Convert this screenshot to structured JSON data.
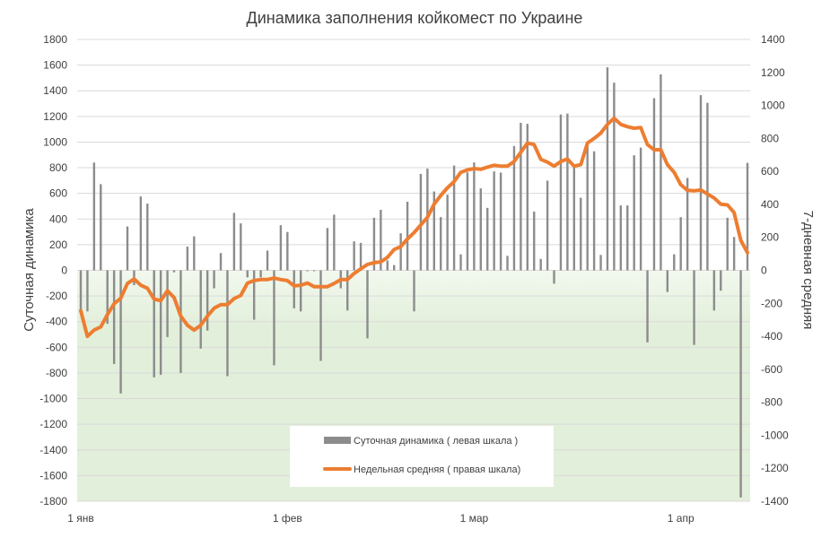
{
  "chart_data": {
    "type": "bar+line",
    "title": "Динамика заполнения койкомест по Украине",
    "ylabel_left": "Суточная динамика",
    "ylabel_right": "7-дневная средняя",
    "ylim_left": [
      -1800,
      1800
    ],
    "ylim_right": [
      -1400,
      1400
    ],
    "yticks_left": [
      "1800",
      "1600",
      "1400",
      "1200",
      "1000",
      "800",
      "600",
      "400",
      "200",
      "0",
      "-200",
      "-400",
      "-600",
      "-800",
      "-1000",
      "-1200",
      "-1400",
      "-1600",
      "-1800"
    ],
    "yticks_right": [
      "1400",
      "1200",
      "1000",
      "800",
      "600",
      "400",
      "200",
      "0",
      "-200",
      "-400",
      "-600",
      "-800",
      "-1000",
      "-1200",
      "-1400"
    ],
    "xticks": [
      {
        "date": "01-01",
        "label": "1 янв"
      },
      {
        "date": "02-01",
        "label": "1 фев"
      },
      {
        "date": "03-01",
        "label": "1 мар"
      },
      {
        "date": "04-01",
        "label": "1 апр"
      }
    ],
    "grid": true,
    "legend_position": "bottom-center",
    "colors": {
      "bars": "#8c8c8c",
      "line": "#ed7d31",
      "negative_area": "#e2efda",
      "grid": "#d9d9d9"
    },
    "x": [
      "01-01",
      "01-02",
      "01-03",
      "01-04",
      "01-05",
      "01-06",
      "01-07",
      "01-08",
      "01-09",
      "01-10",
      "01-11",
      "01-12",
      "01-13",
      "01-14",
      "01-15",
      "01-16",
      "01-17",
      "01-18",
      "01-19",
      "01-20",
      "01-21",
      "01-22",
      "01-23",
      "01-24",
      "01-25",
      "01-26",
      "01-27",
      "01-28",
      "01-29",
      "01-30",
      "01-31",
      "02-01",
      "02-02",
      "02-03",
      "02-04",
      "02-05",
      "02-06",
      "02-07",
      "02-08",
      "02-09",
      "02-10",
      "02-11",
      "02-12",
      "02-13",
      "02-14",
      "02-15",
      "02-16",
      "02-17",
      "02-18",
      "02-19",
      "02-20",
      "02-21",
      "02-22",
      "02-23",
      "02-24",
      "02-25",
      "02-26",
      "02-27",
      "02-28",
      "03-01",
      "03-02",
      "03-03",
      "03-04",
      "03-05",
      "03-06",
      "03-07",
      "03-08",
      "03-09",
      "03-10",
      "03-11",
      "03-12",
      "03-13",
      "03-14",
      "03-15",
      "03-16",
      "03-17",
      "03-18",
      "03-19",
      "03-20",
      "03-21",
      "03-22",
      "03-23",
      "03-24",
      "03-25",
      "03-26",
      "03-27",
      "03-28",
      "03-29",
      "03-30",
      "03-31",
      "04-01",
      "04-02",
      "04-03",
      "04-04",
      "04-05",
      "04-06",
      "04-07",
      "04-08",
      "04-09",
      "04-10",
      "04-11"
    ],
    "series": [
      {
        "name": "Суточная динамика ( левая шкала )",
        "type": "bar",
        "axis": "left",
        "values": [
          -320,
          -320,
          840,
          672,
          -417,
          -730,
          -960,
          342,
          -115,
          576,
          520,
          -834,
          -815,
          -520,
          -15,
          -800,
          185,
          265,
          -610,
          -470,
          -140,
          135,
          -825,
          448,
          366,
          -55,
          -385,
          -55,
          154,
          -740,
          352,
          299,
          -296,
          -320,
          -7,
          -7,
          -706,
          330,
          434,
          -140,
          -313,
          226,
          214,
          -530,
          410,
          472,
          77,
          41,
          289,
          535,
          -320,
          752,
          793,
          615,
          415,
          590,
          817,
          125,
          764,
          841,
          639,
          487,
          771,
          762,
          113,
          969,
          1150,
          1142,
          458,
          89,
          699,
          -104,
          1215,
          1222,
          800,
          566,
          969,
          928,
          120,
          1583,
          1463,
          506,
          506,
          897,
          957,
          -562,
          1342,
          1528,
          -169,
          125,
          415,
          720,
          -581,
          1366,
          1306,
          -313,
          -159,
          410,
          260,
          -1770,
          838
        ]
      },
      {
        "name": "Недельная средняя ( правая шкала)",
        "type": "line",
        "axis": "right",
        "values": [
          -245,
          -400,
          -362,
          -343,
          -268,
          -202,
          -169,
          -80,
          -52,
          -90,
          -109,
          -174,
          -184,
          -124,
          -165,
          -277,
          -333,
          -362,
          -333,
          -277,
          -230,
          -208,
          -208,
          -171,
          -152,
          -77,
          -62,
          -56,
          -56,
          -47,
          -56,
          -62,
          -94,
          -90,
          -77,
          -99,
          -99,
          -99,
          -80,
          -56,
          -56,
          -19,
          9,
          36,
          47,
          51,
          79,
          126,
          144,
          191,
          229,
          275,
          322,
          401,
          454,
          500,
          538,
          594,
          609,
          617,
          613,
          626,
          637,
          632,
          632,
          660,
          716,
          772,
          763,
          673,
          656,
          632,
          660,
          675,
          632,
          641,
          772,
          800,
          832,
          885,
          922,
          885,
          871,
          862,
          866,
          763,
          731,
          731,
          641,
          594,
          519,
          485,
          482,
          487,
          463,
          439,
          401,
          397,
          350,
          182,
          107
        ]
      }
    ]
  }
}
